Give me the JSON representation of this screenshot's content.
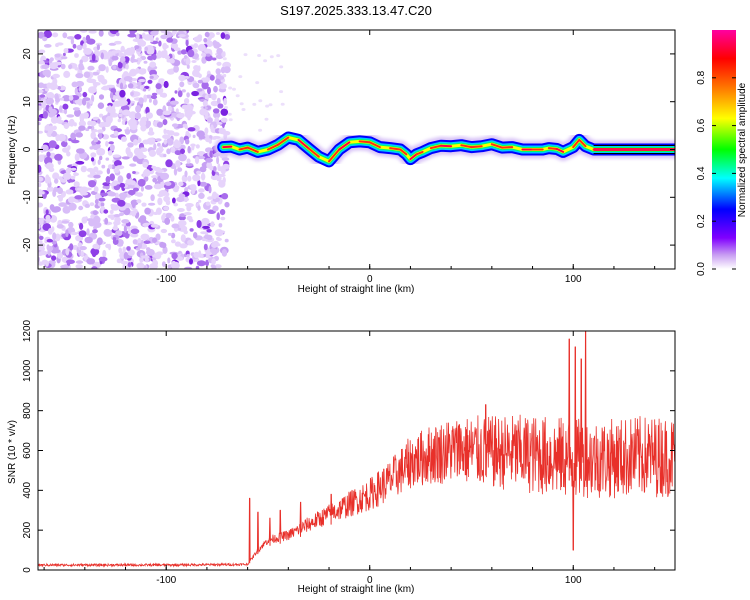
{
  "title": "S197.2025.333.13.47.C20",
  "chart_data": [
    {
      "type": "heatmap",
      "name": "spectrogram",
      "xlabel": "Height of straight line (km)",
      "ylabel": "Frequency (Hz)",
      "xlim": [
        -163,
        150
      ],
      "ylim": [
        -25,
        25
      ],
      "xticks": [
        -100,
        0,
        100
      ],
      "xtick_labels": [
        "-100",
        "0",
        "100"
      ],
      "yticks": [
        -20,
        -10,
        0,
        10,
        20
      ],
      "ytick_labels": [
        "-20",
        "-10",
        "0",
        "10",
        "20"
      ],
      "noise_region_x": [
        -163,
        -72
      ],
      "signal_start_x": -72,
      "ridge_line": {
        "x": [
          -72,
          -68,
          -64,
          -60,
          -55,
          -50,
          -45,
          -40,
          -35,
          -30,
          -25,
          -20,
          -15,
          -10,
          -5,
          0,
          5,
          10,
          15,
          18,
          20,
          23,
          26,
          30,
          35,
          40,
          45,
          50,
          55,
          60,
          65,
          70,
          75,
          80,
          85,
          88,
          92,
          95,
          100,
          103,
          106,
          110,
          120,
          130,
          140,
          150
        ],
        "y": [
          0.5,
          0.6,
          0,
          0.4,
          -0.5,
          0,
          1,
          2.5,
          2,
          0.2,
          -1.5,
          -2.5,
          0,
          1.5,
          1.7,
          1.5,
          0.5,
          0.3,
          0,
          -1,
          -2,
          -1,
          -0.5,
          0.3,
          0.8,
          0.7,
          0.9,
          0.5,
          0.7,
          1.1,
          0.4,
          0.5,
          0,
          0,
          0,
          0.3,
          0.1,
          -0.5,
          0.5,
          2,
          0.7,
          0,
          0,
          0,
          0,
          0
        ]
      },
      "colorbar": {
        "label": "Normalized spectral amplitude",
        "range": [
          0,
          1
        ],
        "ticks": [
          0.0,
          0.2,
          0.4,
          0.6,
          0.8
        ],
        "tick_labels": [
          "0.0",
          "0.2",
          "0.4",
          "0.6",
          "0.8"
        ],
        "colors": [
          "#ffffff",
          "#8000ff",
          "#0000ff",
          "#00ffff",
          "#00ff00",
          "#ffff00",
          "#ff8000",
          "#ff0000",
          "#ff00a0"
        ]
      }
    },
    {
      "type": "line",
      "name": "snr",
      "xlabel": "Height of straight line (km)",
      "ylabel": "SNR (10 * v/v)",
      "xlim": [
        -163,
        150
      ],
      "ylim": [
        0,
        1200
      ],
      "xticks": [
        -100,
        0,
        100
      ],
      "xtick_labels": [
        "-100",
        "0",
        "100"
      ],
      "yticks": [
        0,
        200,
        400,
        600,
        800,
        1000,
        1200
      ],
      "ytick_labels": [
        "0",
        "200",
        "400",
        "600",
        "800",
        "1000",
        "1200"
      ],
      "color": "#e8302a",
      "baseline_envelope": {
        "x": [
          -163,
          -100,
          -60,
          -55,
          -50,
          -40,
          -30,
          -20,
          -10,
          0,
          10,
          20,
          30,
          40,
          50,
          60,
          70,
          80,
          90,
          100,
          110,
          120,
          130,
          140,
          150
        ],
        "y": [
          25,
          25,
          28,
          100,
          150,
          175,
          230,
          280,
          330,
          380,
          450,
          540,
          580,
          600,
          600,
          590,
          590,
          580,
          570,
          560,
          560,
          560,
          570,
          570,
          570
        ]
      },
      "spikes": [
        {
          "x": -59,
          "y": 360
        },
        {
          "x": -55,
          "y": 290
        },
        {
          "x": -49,
          "y": 260
        },
        {
          "x": -44,
          "y": 300
        },
        {
          "x": -34,
          "y": 340
        },
        {
          "x": -19,
          "y": 380
        },
        {
          "x": 19,
          "y": 590
        },
        {
          "x": 44,
          "y": 730
        },
        {
          "x": 57,
          "y": 830
        },
        {
          "x": 98,
          "y": 1160
        },
        {
          "x": 101,
          "y": 1120
        },
        {
          "x": 104,
          "y": 1060
        },
        {
          "x": 106,
          "y": 1200
        },
        {
          "x": 100,
          "y": 100
        }
      ]
    }
  ]
}
